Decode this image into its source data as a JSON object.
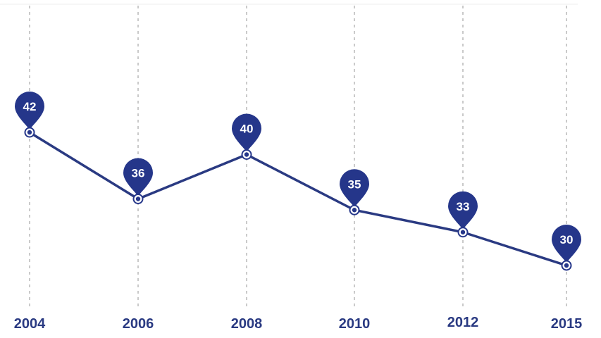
{
  "chart_data": {
    "type": "line",
    "categories": [
      "2004",
      "2006",
      "2008",
      "2010",
      "2012",
      "2015"
    ],
    "values": [
      42,
      36,
      40,
      35,
      33,
      30
    ],
    "grid": "vertical dashed",
    "legend": "none",
    "colors": {
      "line": "#2a3a82",
      "marker": "#25368a",
      "label_text": "#ffffff",
      "axis_text": "#2a3a82",
      "grid": "#bdbdbd"
    }
  }
}
